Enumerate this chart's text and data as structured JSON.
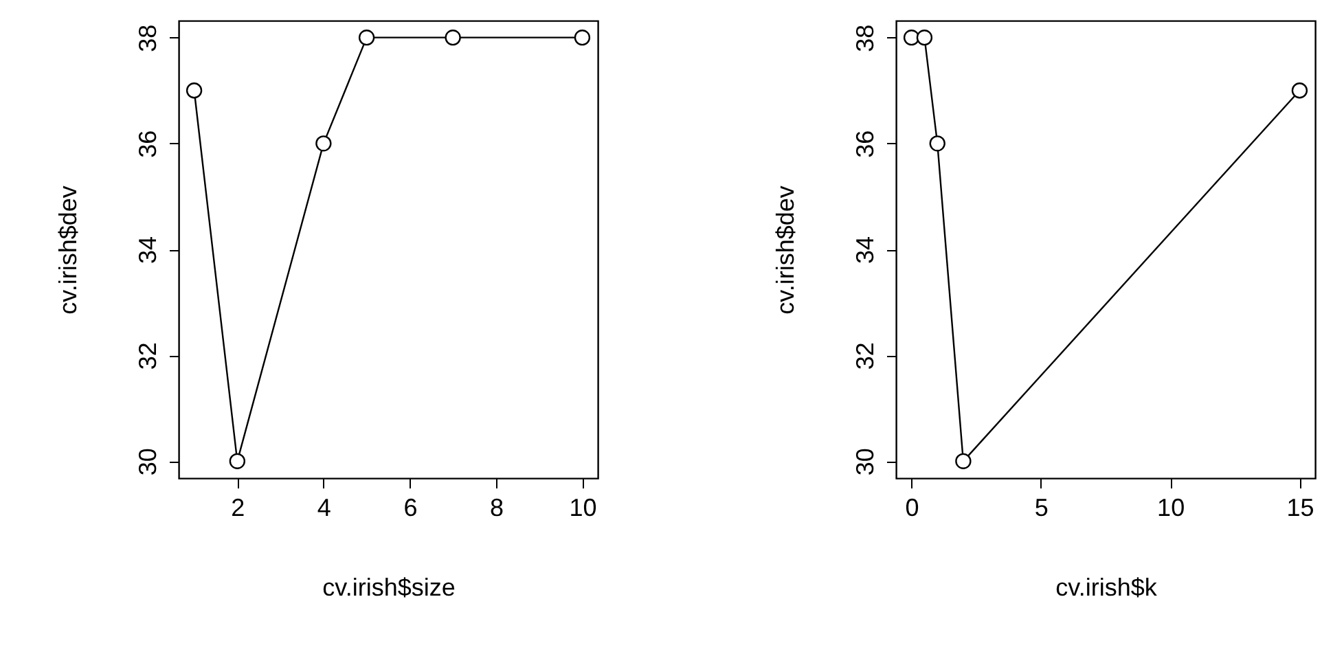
{
  "chart_data": [
    {
      "type": "line",
      "xlabel": "cv.irish$size",
      "ylabel": "cv.irish$dev",
      "x": [
        1,
        2,
        4,
        5,
        7,
        10
      ],
      "values": [
        37,
        30,
        36,
        38,
        38,
        38
      ],
      "xlim": [
        0.64,
        10.36
      ],
      "xticks": [
        2,
        4,
        6,
        8,
        10
      ],
      "ylim": [
        29.68,
        38.32
      ],
      "yticks": [
        30,
        32,
        34,
        36,
        38
      ],
      "marker": "circle",
      "line_style": "solid",
      "grid": false
    },
    {
      "type": "line",
      "xlabel": "cv.irish$k",
      "ylabel": "cv.irish$dev",
      "x": [
        0,
        0.5,
        1,
        2,
        15
      ],
      "values": [
        38,
        38,
        36,
        30,
        37
      ],
      "xlim": [
        -0.6,
        15.6
      ],
      "xticks": [
        0,
        5,
        10,
        15
      ],
      "ylim": [
        29.68,
        38.32
      ],
      "yticks": [
        30,
        32,
        34,
        36,
        38
      ],
      "marker": "circle",
      "line_style": "solid",
      "grid": false
    }
  ]
}
